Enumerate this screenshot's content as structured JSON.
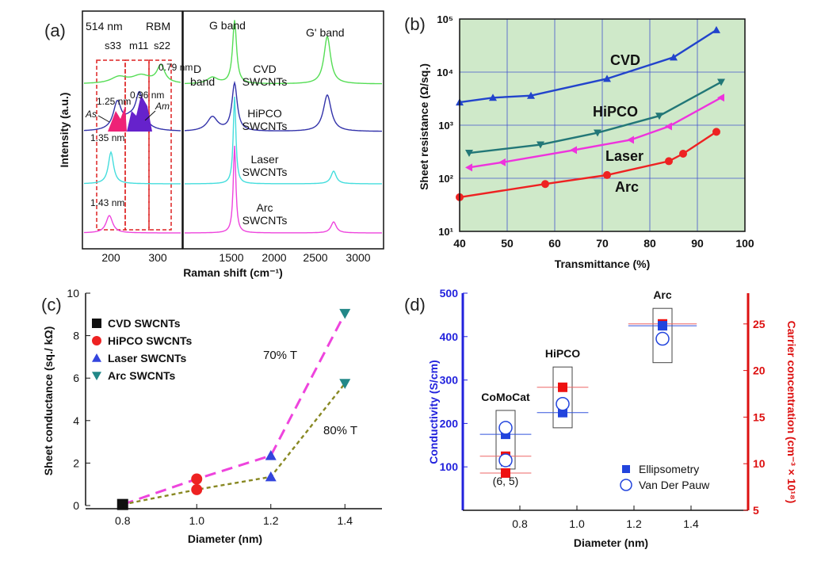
{
  "chart_data": [
    {
      "panel": "(a)",
      "type": "line",
      "xlabel": "Raman shift (cm⁻¹)",
      "ylabel": "Intensity (a.u.)",
      "left_xticks": [
        "200",
        "300"
      ],
      "right_xticks": [
        "1500",
        "2000",
        "2500",
        "3000"
      ],
      "labels": {
        "wavelength": "514 nm",
        "rbm": "RBM",
        "s33": "s33",
        "m11": "m11",
        "s22": "s22",
        "d_band": "D band",
        "g_band": "G band",
        "gp_band": "G' band",
        "as": "As",
        "am": "Am",
        "d079": "0.79 nm",
        "d096": "0.96 nm",
        "d125": "1.25 nm",
        "d135": "1.35 nm",
        "d143": "1.43 nm"
      },
      "series": [
        {
          "name": "CVD SWCNTs",
          "color": "#55dd55"
        },
        {
          "name": "HiPCO SWCNTs",
          "color": "#3333aa"
        },
        {
          "name": "Laser SWCNTs",
          "color": "#44dddd"
        },
        {
          "name": "Arc SWCNTs",
          "color": "#ee44dd"
        }
      ],
      "series_label_lines": [
        [
          "CVD",
          "SWCNTs"
        ],
        [
          "HiPCO",
          "SWCNTs"
        ],
        [
          "Laser",
          "SWCNTs"
        ],
        [
          "Arc",
          "SWCNTs"
        ]
      ]
    },
    {
      "panel": "(b)",
      "type": "line",
      "xlabel": "Transmittance (%)",
      "ylabel": "Sheet resistance (Ω/sq.)",
      "xlim": [
        40,
        100
      ],
      "ylim": [
        10,
        100000
      ],
      "yscale": "log",
      "grid": true,
      "xticks": [
        40,
        50,
        60,
        70,
        80,
        90,
        100
      ],
      "yticks": [
        "10¹",
        "10²",
        "10³",
        "10⁴",
        "10⁵"
      ],
      "series": [
        {
          "name": "CVD",
          "color": "#2244cc",
          "marker": "triangle-up",
          "x": [
            40,
            47,
            55,
            71,
            85,
            94
          ],
          "y": [
            2700,
            3300,
            3600,
            7500,
            19000,
            62000
          ]
        },
        {
          "name": "HiPCO",
          "color": "#227777",
          "marker": "triangle-down",
          "x": [
            42,
            57,
            69,
            82,
            95
          ],
          "y": [
            300,
            430,
            720,
            1500,
            6500
          ]
        },
        {
          "name": "Laser",
          "color": "#ee33dd",
          "marker": "triangle-left",
          "x": [
            42,
            49,
            64,
            76,
            84,
            95
          ],
          "y": [
            160,
            200,
            340,
            530,
            950,
            3300
          ]
        },
        {
          "name": "Arc",
          "color": "#ee2222",
          "marker": "circle",
          "x": [
            40,
            58,
            71,
            84,
            87,
            94
          ],
          "y": [
            44,
            78,
            115,
            210,
            290,
            750
          ]
        }
      ]
    },
    {
      "panel": "(c)",
      "type": "scatter",
      "xlabel": "Diameter (nm)",
      "ylabel": "Sheet conductance (sq./ kΩ)",
      "xlim": [
        0.7,
        1.5
      ],
      "ylim": [
        0,
        10
      ],
      "xticks": [
        "0.8",
        "1.0",
        "1.2",
        "1.4"
      ],
      "yticks": [
        "0",
        "2",
        "4",
        "6",
        "8",
        "10"
      ],
      "legend": [
        {
          "name": "CVD SWCNTs",
          "color": "#111111",
          "marker": "square"
        },
        {
          "name": "HiPCO SWCNTs",
          "color": "#ee2222",
          "marker": "circle"
        },
        {
          "name": "Laser SWCNTs",
          "color": "#3344dd",
          "marker": "triangle-up"
        },
        {
          "name": "Arc SWCNTs",
          "color": "#228888",
          "marker": "triangle-down"
        }
      ],
      "points": [
        {
          "series": 0,
          "x": 0.8,
          "y": 0.05
        },
        {
          "series": 1,
          "x": 1.0,
          "y": 1.25
        },
        {
          "series": 1,
          "x": 1.0,
          "y": 0.75
        },
        {
          "series": 2,
          "x": 1.2,
          "y": 2.35
        },
        {
          "series": 2,
          "x": 1.2,
          "y": 1.35
        },
        {
          "series": 3,
          "x": 1.4,
          "y": 9.05
        },
        {
          "series": 3,
          "x": 1.4,
          "y": 5.75
        }
      ],
      "lines": [
        {
          "name": "70% T",
          "color": "#ee44dd",
          "x": [
            0.8,
            1.0,
            1.2,
            1.4
          ],
          "y": [
            0.05,
            1.25,
            2.35,
            9.05
          ]
        },
        {
          "name": "80% T",
          "color": "#888822",
          "x": [
            0.8,
            1.0,
            1.2,
            1.4
          ],
          "y": [
            0.05,
            0.75,
            1.35,
            5.75
          ]
        }
      ]
    },
    {
      "panel": "(d)",
      "type": "scatter",
      "xlabel": "Diameter (nm)",
      "ylabel": "Conductivity (S/cm)",
      "ylabel_right": "Carrier concentration (cm⁻³ × 10¹⁸)",
      "xlim": [
        0.6,
        1.6
      ],
      "ylim": [
        0,
        500
      ],
      "ylim_right": [
        5,
        28.3
      ],
      "xticks": [
        "0.8",
        "1.0",
        "1.2",
        "1.4"
      ],
      "yticks": [
        "100",
        "200",
        "300",
        "400",
        "500"
      ],
      "yticks_right": [
        "5",
        "10",
        "15",
        "20",
        "25"
      ],
      "left_axis_color": "#2222dd",
      "right_axis_color": "#dd1111",
      "legend": [
        {
          "name": "Ellipsometry",
          "color": "#2244dd",
          "marker": "filled-square"
        },
        {
          "name": "Van Der Pauw",
          "color": "#2244dd",
          "marker": "open-circle"
        }
      ],
      "groups": [
        {
          "label": "CoMoCat",
          "label2": "(6, 5)",
          "x": 0.75,
          "xerr": 0.09,
          "ellipsometry": 175,
          "van_der_pauw": 190,
          "carrier_red": [
            10.8,
            9.0
          ],
          "van_der_pauw2": 115,
          "ellipsometry2": 112,
          "box": [
            95,
            230
          ]
        },
        {
          "label": "HiPCO",
          "x": 0.95,
          "xerr": 0.09,
          "ellipsometry": 225,
          "van_der_pauw": 245,
          "carrier_red": [
            18.2
          ],
          "box": [
            190,
            330
          ]
        },
        {
          "label": "Arc",
          "x": 1.3,
          "xerr": 0.12,
          "ellipsometry": 425,
          "van_der_pauw": 395,
          "carrier_red": [
            25.0
          ],
          "box": [
            340,
            465
          ]
        }
      ]
    }
  ]
}
